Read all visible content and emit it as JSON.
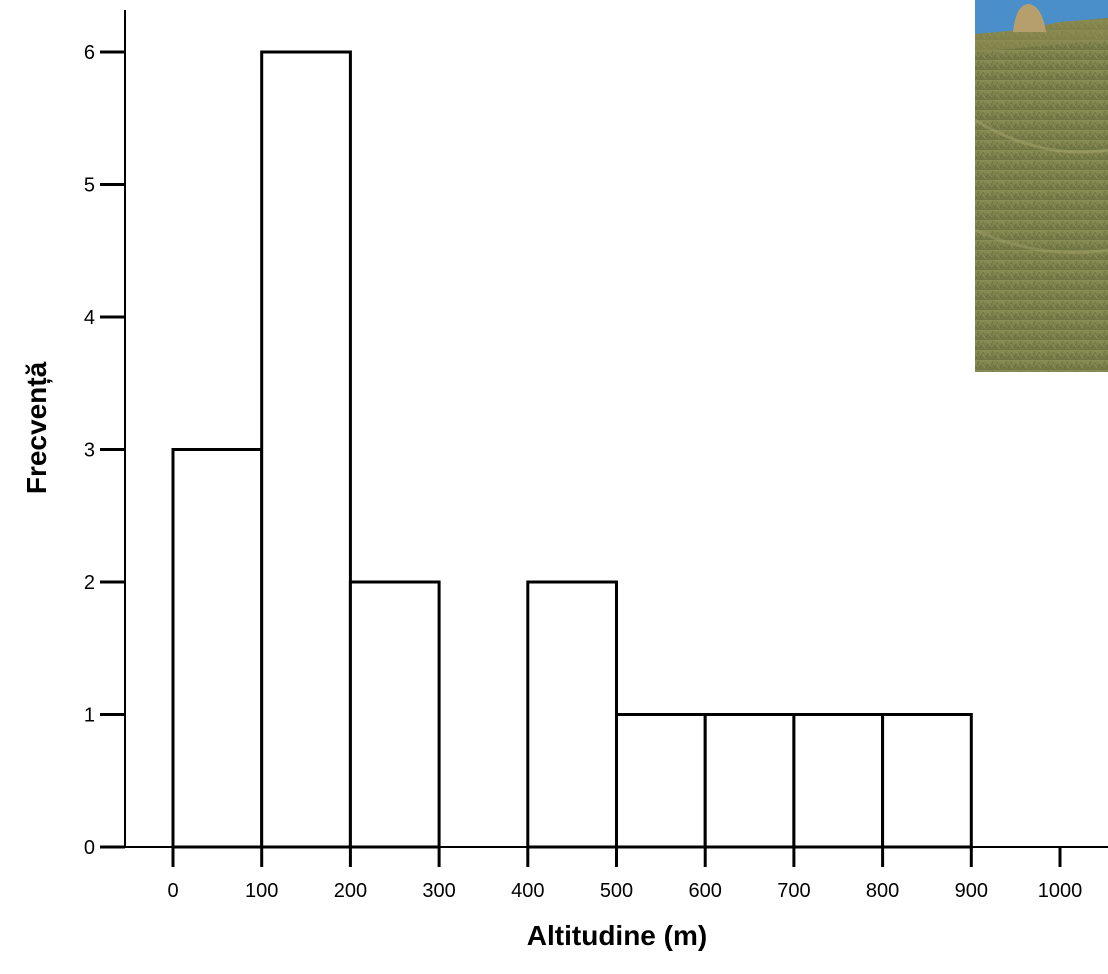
{
  "chart_data": {
    "type": "bar",
    "title": "",
    "xlabel": "Altitudine (m)",
    "ylabel": "Frecvență",
    "bin_edges": [
      0,
      100,
      200,
      300,
      400,
      500,
      600,
      700,
      800,
      900,
      1000
    ],
    "values": [
      3,
      6,
      2,
      0,
      2,
      1,
      1,
      1,
      1,
      0
    ],
    "xlim": [
      0,
      1000
    ],
    "ylim": [
      0,
      6
    ],
    "x_ticks": [
      "0",
      "100",
      "200",
      "300",
      "400",
      "500",
      "600",
      "700",
      "800",
      "900",
      "1000"
    ],
    "y_ticks": [
      "0",
      "1",
      "2",
      "3",
      "4",
      "5",
      "6"
    ],
    "grid": false,
    "bar_fill": "#ffffff",
    "bar_stroke": "#000000"
  },
  "background_photo": {
    "description_icon": "grassy-hillside-with-haystack-photo"
  }
}
